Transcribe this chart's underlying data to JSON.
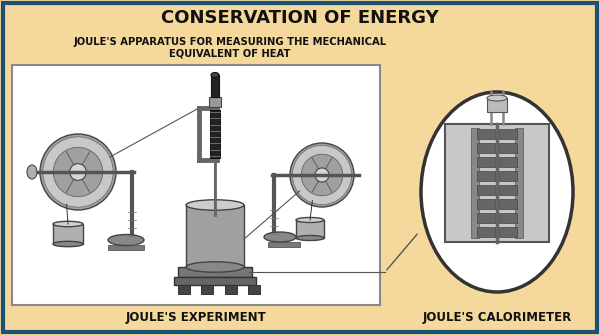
{
  "title": "CONSERVATION OF ENERGY",
  "subtitle_line1": "JOULE'S APPARATUS FOR MEASURING THE MECHANICAL",
  "subtitle_line2": "EQUIVALENT OF HEAT",
  "label_left": "JOULE'S EXPERIMENT",
  "label_right": "JOULE'S CALORIMETER",
  "bg_color": "#F5D89C",
  "border_color": "#1A5276",
  "title_color": "#111111",
  "subtitle_color": "#111111",
  "label_color": "#111111",
  "box_fill": "#FFFFFF",
  "box_border": "#666666"
}
